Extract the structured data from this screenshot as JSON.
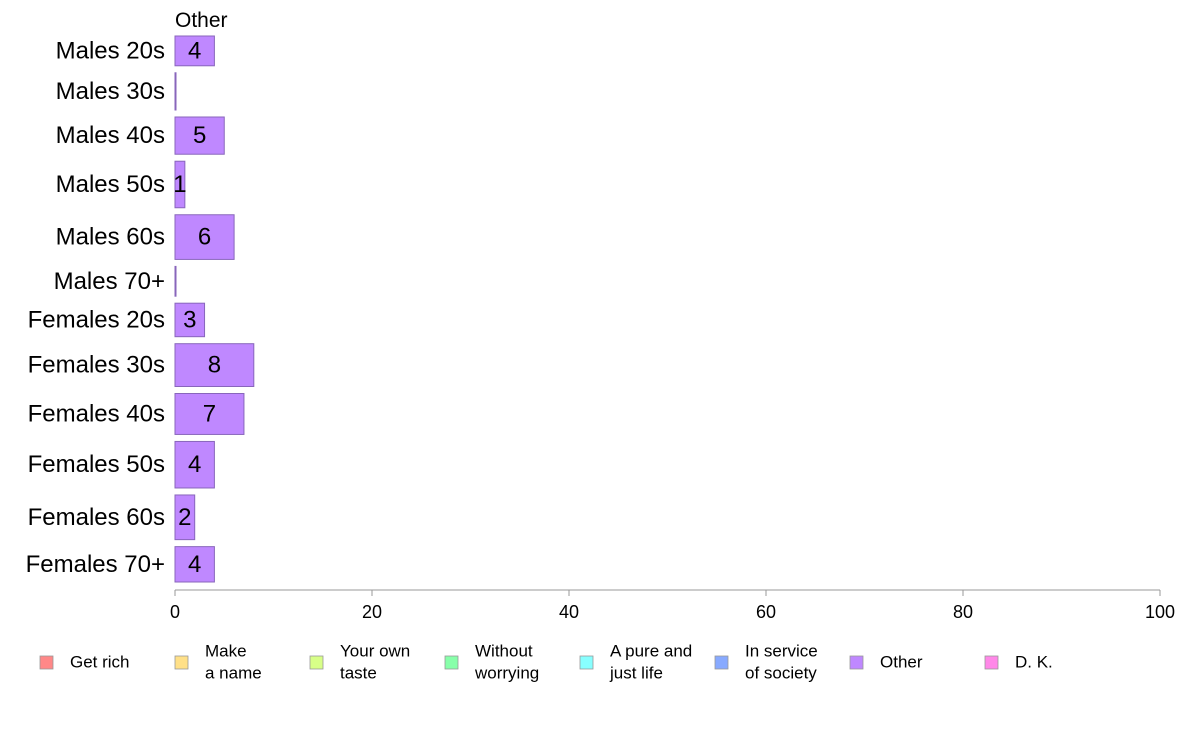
{
  "chart_data": {
    "type": "bar",
    "orientation": "horizontal",
    "panel_title": "Other",
    "categories": [
      "Males 20s",
      "Males 30s",
      "Males 40s",
      "Males 50s",
      "Males 60s",
      "Males 70+",
      "Females 20s",
      "Females 30s",
      "Females 40s",
      "Females 50s",
      "Females 60s",
      "Females 70+"
    ],
    "series": [
      {
        "name": "Other",
        "values": [
          4,
          0,
          5,
          1,
          6,
          0,
          3,
          8,
          7,
          4,
          2,
          4
        ],
        "color": "#bf88ff"
      }
    ],
    "data_labels": [
      "4",
      "",
      "5",
      "1",
      "6",
      "",
      "3",
      "8",
      "7",
      "4",
      "2",
      "4"
    ],
    "bar_thickness_weights": [
      32,
      40,
      40,
      50,
      48,
      32,
      36,
      46,
      44,
      50,
      48,
      38
    ],
    "xlim": [
      0,
      100
    ],
    "xticks": [
      0,
      20,
      40,
      60,
      80,
      100
    ],
    "grid": false,
    "legend": {
      "position": "bottom",
      "items": [
        {
          "label": [
            "Get rich"
          ],
          "color": "#ff8888"
        },
        {
          "label": [
            "Make",
            "a name"
          ],
          "color": "#ffe088"
        },
        {
          "label": [
            "Your own",
            "taste"
          ],
          "color": "#d8ff88"
        },
        {
          "label": [
            "Without",
            "worrying"
          ],
          "color": "#88ffaa"
        },
        {
          "label": [
            "A pure and",
            "just life"
          ],
          "color": "#88ffff"
        },
        {
          "label": [
            "In service",
            "of society"
          ],
          "color": "#88aaff"
        },
        {
          "label": [
            "Other"
          ],
          "color": "#bf88ff"
        },
        {
          "label": [
            "D. K."
          ],
          "color": "#ff88e8"
        }
      ]
    }
  }
}
